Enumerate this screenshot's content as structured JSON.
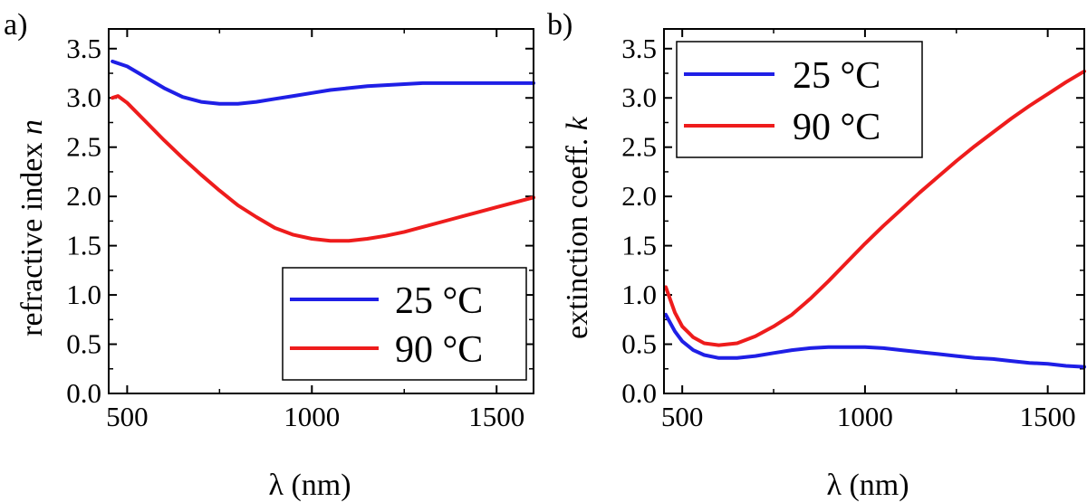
{
  "chart_data": [
    {
      "type": "line",
      "panel_label": "a)",
      "xlabel": "λ (nm)",
      "ylabel": "refractive index ",
      "ylabel_symbol": "n",
      "xlim": [
        450,
        1600
      ],
      "ylim": [
        0.0,
        3.7
      ],
      "xticks": [
        500,
        1000,
        1500
      ],
      "xtick_labels": [
        "500",
        "1000",
        "1500"
      ],
      "yticks": [
        0.0,
        0.5,
        1.0,
        1.5,
        2.0,
        2.5,
        3.0,
        3.5
      ],
      "ytick_labels": [
        "0.0",
        "0.5",
        "1.0",
        "1.5",
        "2.0",
        "2.5",
        "3.0",
        "3.5"
      ],
      "legend_position": "bottom-right",
      "series": [
        {
          "name": "25 °C",
          "color": "#1f1fe6",
          "x": [
            460,
            500,
            550,
            600,
            650,
            700,
            750,
            800,
            850,
            900,
            950,
            1000,
            1050,
            1100,
            1150,
            1200,
            1250,
            1300,
            1350,
            1400,
            1450,
            1500,
            1550,
            1600
          ],
          "y": [
            3.37,
            3.32,
            3.21,
            3.1,
            3.01,
            2.96,
            2.94,
            2.94,
            2.96,
            2.99,
            3.02,
            3.05,
            3.08,
            3.1,
            3.12,
            3.13,
            3.14,
            3.15,
            3.15,
            3.15,
            3.15,
            3.15,
            3.15,
            3.15
          ]
        },
        {
          "name": "90 °C",
          "color": "#ee1c1c",
          "x": [
            460,
            475,
            500,
            550,
            600,
            650,
            700,
            750,
            800,
            850,
            900,
            950,
            1000,
            1050,
            1100,
            1150,
            1200,
            1250,
            1300,
            1350,
            1400,
            1450,
            1500,
            1550,
            1600
          ],
          "y": [
            3.0,
            3.02,
            2.95,
            2.76,
            2.57,
            2.39,
            2.22,
            2.06,
            1.91,
            1.79,
            1.68,
            1.61,
            1.57,
            1.55,
            1.55,
            1.57,
            1.6,
            1.64,
            1.69,
            1.74,
            1.79,
            1.84,
            1.89,
            1.94,
            1.99
          ]
        }
      ]
    },
    {
      "type": "line",
      "panel_label": "b)",
      "xlabel": "λ (nm)",
      "ylabel": "extinction coeff. ",
      "ylabel_symbol": "k",
      "xlim": [
        450,
        1600
      ],
      "ylim": [
        0.0,
        3.7
      ],
      "xticks": [
        500,
        1000,
        1500
      ],
      "xtick_labels": [
        "500",
        "1000",
        "1500"
      ],
      "yticks": [
        0.0,
        0.5,
        1.0,
        1.5,
        2.0,
        2.5,
        3.0,
        3.5
      ],
      "ytick_labels": [
        "0.0",
        "0.5",
        "1.0",
        "1.5",
        "2.0",
        "2.5",
        "3.0",
        "3.5"
      ],
      "legend_position": "top-left",
      "series": [
        {
          "name": "25 °C",
          "color": "#1f1fe6",
          "x": [
            455,
            480,
            500,
            530,
            560,
            600,
            650,
            700,
            750,
            800,
            850,
            900,
            950,
            1000,
            1050,
            1100,
            1150,
            1200,
            1250,
            1300,
            1350,
            1400,
            1450,
            1500,
            1550,
            1600
          ],
          "y": [
            0.8,
            0.63,
            0.53,
            0.44,
            0.39,
            0.36,
            0.36,
            0.38,
            0.41,
            0.44,
            0.46,
            0.47,
            0.47,
            0.47,
            0.46,
            0.44,
            0.42,
            0.4,
            0.38,
            0.36,
            0.35,
            0.33,
            0.31,
            0.3,
            0.28,
            0.27
          ]
        },
        {
          "name": "90 °C",
          "color": "#ee1c1c",
          "x": [
            455,
            480,
            500,
            530,
            560,
            600,
            650,
            700,
            750,
            800,
            850,
            900,
            950,
            1000,
            1050,
            1100,
            1150,
            1200,
            1250,
            1300,
            1350,
            1400,
            1450,
            1500,
            1550,
            1600
          ],
          "y": [
            1.08,
            0.82,
            0.68,
            0.57,
            0.51,
            0.49,
            0.51,
            0.58,
            0.68,
            0.8,
            0.96,
            1.14,
            1.33,
            1.52,
            1.7,
            1.87,
            2.04,
            2.2,
            2.36,
            2.51,
            2.65,
            2.79,
            2.92,
            3.04,
            3.16,
            3.27
          ]
        }
      ]
    }
  ]
}
